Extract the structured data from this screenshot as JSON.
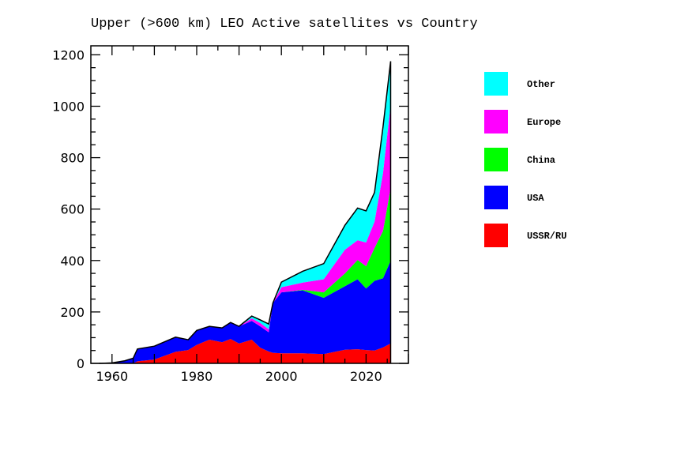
{
  "chart_data": {
    "type": "area",
    "stacked": true,
    "title": "Upper (>600 km) LEO Active satellites vs Country",
    "xlabel": "",
    "ylabel": "",
    "xlim": [
      1955,
      2030
    ],
    "ylim": [
      0,
      1235
    ],
    "xticks": [
      1960,
      1980,
      2000,
      2020
    ],
    "yticks": [
      0,
      200,
      400,
      600,
      800,
      1000,
      1200
    ],
    "grid": false,
    "legend_position": "right",
    "x": [
      1957,
      1960,
      1963,
      1965,
      1966,
      1970,
      1975,
      1978,
      1980,
      1983,
      1986,
      1988,
      1990,
      1993,
      1995,
      1997,
      1998,
      2000,
      2005,
      2010,
      2015,
      2018,
      2020,
      2022,
      2024,
      2025.8
    ],
    "series": [
      {
        "name": "USSR/RU",
        "color": "#ff0000",
        "values": [
          0,
          0,
          0,
          0,
          8,
          15,
          45,
          52,
          72,
          92,
          82,
          95,
          77,
          92,
          61,
          46,
          41,
          39,
          39,
          36,
          53,
          55,
          52,
          50,
          62,
          77
        ]
      },
      {
        "name": "USA",
        "color": "#0000ff",
        "values": [
          0,
          2,
          10,
          20,
          48,
          52,
          57,
          40,
          56,
          52,
          56,
          64,
          67,
          73,
          83,
          75,
          194,
          237,
          245,
          219,
          247,
          272,
          239,
          271,
          269,
          322
        ]
      },
      {
        "name": "China",
        "color": "#00ff00",
        "values": [
          0,
          0,
          0,
          0,
          0,
          0,
          0,
          0,
          0,
          0,
          0,
          0,
          0,
          0,
          0,
          0,
          0,
          0,
          2,
          21,
          50,
          75,
          87,
          128,
          184,
          282
        ]
      },
      {
        "name": "Europe",
        "color": "#ff00ff",
        "values": [
          0,
          0,
          0,
          0,
          0,
          0,
          0,
          0,
          0,
          0,
          0,
          0,
          0,
          10,
          13,
          12,
          0,
          20,
          28,
          51,
          92,
          77,
          92,
          102,
          225,
          325
        ]
      },
      {
        "name": "Other",
        "color": "#00ffff",
        "values": [
          0,
          0,
          0,
          0,
          0,
          0,
          0,
          0,
          0,
          0,
          0,
          0,
          0,
          9,
          12,
          20,
          0,
          20,
          44,
          61,
          95,
          125,
          123,
          114,
          180,
          169
        ]
      }
    ],
    "legend_order": [
      "Other",
      "Europe",
      "China",
      "USA",
      "USSR/RU"
    ]
  }
}
